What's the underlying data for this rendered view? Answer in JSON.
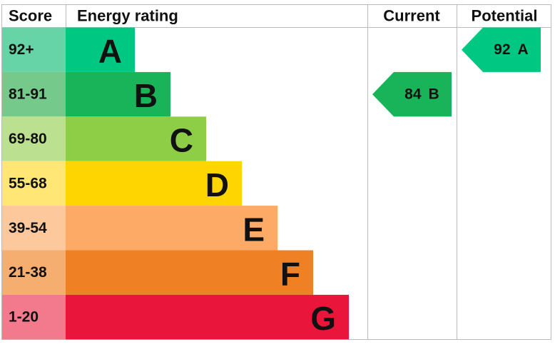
{
  "header": {
    "score": "Score",
    "rating": "Energy rating",
    "current": "Current",
    "potential": "Potential"
  },
  "bands": [
    {
      "score": "92+",
      "letter": "A",
      "color": "#00c781",
      "light": "#66d4a6"
    },
    {
      "score": "81-91",
      "letter": "B",
      "color": "#19b459",
      "light": "#75c98a"
    },
    {
      "score": "69-80",
      "letter": "C",
      "color": "#8dce46",
      "light": "#bbe08f"
    },
    {
      "score": "55-68",
      "letter": "D",
      "color": "#ffd500",
      "light": "#ffe675"
    },
    {
      "score": "39-54",
      "letter": "E",
      "color": "#fcaa65",
      "light": "#fdc89b"
    },
    {
      "score": "21-38",
      "letter": "F",
      "color": "#ef8023",
      "light": "#f5ad70"
    },
    {
      "score": "1-20",
      "letter": "G",
      "color": "#e9153b",
      "light": "#f27a8c"
    }
  ],
  "current": {
    "score": 84,
    "letter": "B"
  },
  "potential": {
    "score": 92,
    "letter": "A"
  }
}
